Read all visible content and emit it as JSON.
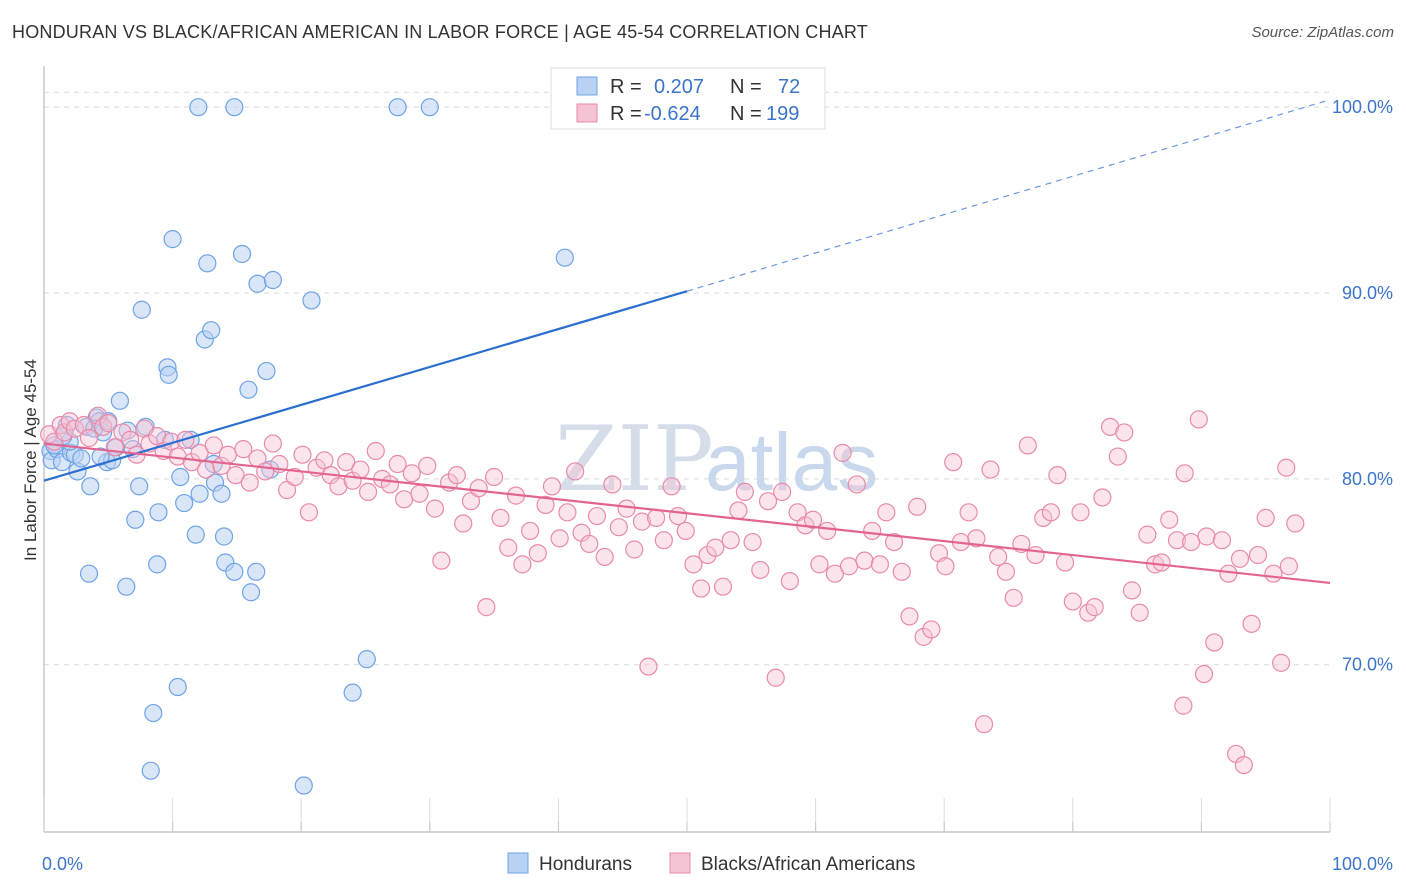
{
  "title": "HONDURAN VS BLACK/AFRICAN AMERICAN IN LABOR FORCE | AGE 45-54 CORRELATION CHART",
  "source": "Source: ZipAtlas.com",
  "watermark": {
    "zip": "ZIP",
    "atlas": "atlas"
  },
  "colors": {
    "blue": "#6ea3e6",
    "blue_fill": "#b9d2f3",
    "blue_line": "#2b6fcf",
    "pink": "#e98aa9",
    "pink_fill": "#f6c3d4",
    "pink_line": "#e2648f",
    "tick_text": "#3b74c9",
    "grid": "#d9d9d9"
  },
  "legend": {
    "rows": [
      {
        "r_label": "R =",
        "r_value": "0.207",
        "n_label": "N =",
        "n_value": "72"
      },
      {
        "r_label": "R =",
        "r_value": "-0.624",
        "n_label": "N =",
        "n_value": "199"
      }
    ]
  },
  "bottom_legend": {
    "series1": "Hondurans",
    "series2": "Blacks/African Americans"
  },
  "chart_data": {
    "type": "scatter",
    "title": "HONDURAN VS BLACK/AFRICAN AMERICAN IN LABOR FORCE | AGE 45-54 CORRELATION CHART",
    "xlabel": "",
    "ylabel": "In Labor Force | Age 45-54",
    "xlim": [
      0,
      100
    ],
    "ylim": [
      61,
      102
    ],
    "x_tick_labels": [
      "0.0%",
      "100.0%"
    ],
    "y_ticks": [
      70,
      80,
      90,
      100
    ],
    "y_tick_labels": [
      "70.0%",
      "80.0%",
      "90.0%",
      "100.0%"
    ],
    "grid": true,
    "series": [
      {
        "name": "Hondurans",
        "stats": {
          "R": 0.207,
          "N": 72
        },
        "trend": {
          "x1": 0,
          "y1": 79.9,
          "x2": 50,
          "y2": 90.1,
          "dash_to_x": 100,
          "dash_to_y": 100.4
        },
        "points": [
          [
            0.5,
            81.5
          ],
          [
            0.6,
            81.0
          ],
          [
            1.0,
            81.6
          ],
          [
            1.4,
            80.9
          ],
          [
            1.8,
            82.9
          ],
          [
            2.1,
            81.4
          ],
          [
            2.4,
            81.3
          ],
          [
            2.6,
            80.4
          ],
          [
            2.9,
            81.1
          ],
          [
            3.3,
            82.8
          ],
          [
            3.6,
            79.6
          ],
          [
            4.1,
            83.3
          ],
          [
            4.3,
            83.1
          ],
          [
            4.6,
            82.5
          ],
          [
            4.9,
            80.9
          ],
          [
            5.3,
            81.0
          ],
          [
            5.6,
            81.7
          ],
          [
            5.9,
            84.2
          ],
          [
            6.5,
            82.6
          ],
          [
            7.1,
            77.8
          ],
          [
            7.4,
            79.6
          ],
          [
            7.6,
            89.1
          ],
          [
            7.9,
            82.8
          ],
          [
            8.3,
            64.3
          ],
          [
            8.5,
            67.4
          ],
          [
            8.9,
            78.2
          ],
          [
            8.8,
            75.4
          ],
          [
            9.6,
            86.0
          ],
          [
            9.7,
            85.6
          ],
          [
            10.0,
            92.9
          ],
          [
            10.4,
            68.8
          ],
          [
            10.6,
            80.1
          ],
          [
            10.9,
            78.7
          ],
          [
            11.4,
            82.1
          ],
          [
            11.8,
            77.0
          ],
          [
            12.1,
            79.2
          ],
          [
            12.5,
            87.5
          ],
          [
            12.7,
            91.6
          ],
          [
            13.0,
            88.0
          ],
          [
            13.2,
            80.8
          ],
          [
            13.3,
            79.8
          ],
          [
            13.8,
            79.2
          ],
          [
            14.0,
            76.9
          ],
          [
            14.1,
            75.5
          ],
          [
            14.8,
            75.0
          ],
          [
            15.4,
            92.1
          ],
          [
            15.9,
            84.8
          ],
          [
            16.1,
            73.9
          ],
          [
            16.5,
            75.0
          ],
          [
            16.6,
            90.5
          ],
          [
            17.3,
            85.8
          ],
          [
            17.6,
            80.5
          ],
          [
            17.8,
            90.7
          ],
          [
            20.2,
            63.5
          ],
          [
            20.8,
            89.6
          ],
          [
            24.0,
            68.5
          ],
          [
            25.1,
            70.3
          ],
          [
            27.5,
            100.0
          ],
          [
            30.0,
            100.0
          ],
          [
            12.0,
            100.0
          ],
          [
            14.8,
            100.0
          ],
          [
            40.5,
            91.9
          ],
          [
            3.5,
            74.9
          ],
          [
            6.4,
            74.2
          ],
          [
            2.0,
            82.0
          ],
          [
            5.0,
            83.1
          ],
          [
            1.5,
            82.3
          ],
          [
            0.8,
            81.8
          ],
          [
            4.4,
            81.2
          ],
          [
            6.9,
            81.6
          ],
          [
            9.4,
            82.1
          ],
          [
            3.9,
            82.7
          ]
        ]
      },
      {
        "name": "Blacks/African Americans",
        "stats": {
          "R": -0.624,
          "N": 199
        },
        "trend": {
          "x1": 0,
          "y1": 81.9,
          "x2": 100,
          "y2": 74.4
        },
        "points": [
          [
            0.4,
            82.4
          ],
          [
            0.8,
            82.0
          ],
          [
            1.3,
            82.9
          ],
          [
            1.6,
            82.5
          ],
          [
            2.0,
            83.1
          ],
          [
            2.4,
            82.7
          ],
          [
            3.1,
            82.9
          ],
          [
            3.5,
            82.2
          ],
          [
            4.2,
            83.4
          ],
          [
            4.6,
            82.8
          ],
          [
            5.0,
            83.0
          ],
          [
            5.5,
            81.7
          ],
          [
            6.1,
            82.5
          ],
          [
            6.7,
            82.1
          ],
          [
            7.2,
            81.3
          ],
          [
            7.8,
            82.7
          ],
          [
            8.2,
            81.9
          ],
          [
            8.8,
            82.3
          ],
          [
            9.3,
            81.5
          ],
          [
            9.9,
            82.0
          ],
          [
            10.4,
            81.2
          ],
          [
            11.0,
            82.1
          ],
          [
            11.5,
            80.9
          ],
          [
            12.1,
            81.4
          ],
          [
            12.6,
            80.5
          ],
          [
            13.2,
            81.8
          ],
          [
            13.8,
            80.7
          ],
          [
            14.3,
            81.3
          ],
          [
            14.9,
            80.2
          ],
          [
            15.5,
            81.6
          ],
          [
            16.0,
            79.8
          ],
          [
            16.6,
            81.1
          ],
          [
            17.2,
            80.4
          ],
          [
            17.8,
            81.9
          ],
          [
            18.3,
            80.8
          ],
          [
            18.9,
            79.4
          ],
          [
            19.5,
            80.1
          ],
          [
            20.1,
            81.3
          ],
          [
            20.6,
            78.2
          ],
          [
            21.2,
            80.6
          ],
          [
            21.8,
            81.0
          ],
          [
            22.3,
            80.2
          ],
          [
            22.9,
            79.6
          ],
          [
            23.5,
            80.9
          ],
          [
            24.0,
            79.9
          ],
          [
            24.6,
            80.5
          ],
          [
            25.2,
            79.3
          ],
          [
            25.8,
            81.5
          ],
          [
            26.3,
            80.0
          ],
          [
            26.9,
            79.7
          ],
          [
            27.5,
            80.8
          ],
          [
            28.0,
            78.9
          ],
          [
            28.6,
            80.3
          ],
          [
            29.2,
            79.2
          ],
          [
            29.8,
            80.7
          ],
          [
            30.4,
            78.4
          ],
          [
            30.9,
            75.6
          ],
          [
            31.5,
            79.8
          ],
          [
            32.1,
            80.2
          ],
          [
            32.6,
            77.6
          ],
          [
            33.2,
            78.8
          ],
          [
            33.8,
            79.5
          ],
          [
            34.4,
            73.1
          ],
          [
            35.0,
            80.1
          ],
          [
            35.5,
            77.9
          ],
          [
            36.1,
            76.3
          ],
          [
            36.7,
            79.1
          ],
          [
            37.2,
            75.4
          ],
          [
            37.8,
            77.2
          ],
          [
            38.4,
            76.0
          ],
          [
            39.0,
            78.6
          ],
          [
            39.5,
            79.6
          ],
          [
            40.1,
            76.8
          ],
          [
            40.7,
            78.2
          ],
          [
            41.3,
            80.4
          ],
          [
            41.8,
            77.1
          ],
          [
            42.4,
            76.5
          ],
          [
            43.0,
            78.0
          ],
          [
            43.6,
            75.8
          ],
          [
            44.2,
            79.7
          ],
          [
            44.7,
            77.4
          ],
          [
            45.3,
            78.4
          ],
          [
            45.9,
            76.2
          ],
          [
            46.5,
            77.7
          ],
          [
            47.0,
            69.9
          ],
          [
            47.6,
            77.9
          ],
          [
            48.2,
            76.7
          ],
          [
            48.8,
            79.6
          ],
          [
            49.3,
            78.0
          ],
          [
            49.9,
            77.2
          ],
          [
            50.5,
            75.4
          ],
          [
            51.1,
            74.1
          ],
          [
            51.6,
            75.9
          ],
          [
            52.2,
            76.3
          ],
          [
            52.8,
            74.2
          ],
          [
            53.4,
            76.7
          ],
          [
            54.0,
            78.3
          ],
          [
            54.5,
            79.3
          ],
          [
            55.1,
            76.6
          ],
          [
            55.7,
            75.1
          ],
          [
            56.3,
            78.8
          ],
          [
            56.9,
            69.3
          ],
          [
            57.4,
            79.3
          ],
          [
            58.0,
            74.5
          ],
          [
            58.6,
            78.2
          ],
          [
            59.2,
            77.5
          ],
          [
            59.8,
            77.8
          ],
          [
            60.3,
            75.4
          ],
          [
            60.9,
            77.2
          ],
          [
            61.5,
            74.9
          ],
          [
            62.1,
            81.4
          ],
          [
            62.6,
            75.3
          ],
          [
            63.2,
            79.7
          ],
          [
            63.8,
            75.6
          ],
          [
            64.4,
            77.2
          ],
          [
            65.0,
            75.4
          ],
          [
            65.5,
            78.2
          ],
          [
            66.1,
            76.6
          ],
          [
            66.7,
            75.0
          ],
          [
            67.3,
            72.6
          ],
          [
            67.9,
            78.5
          ],
          [
            68.4,
            71.5
          ],
          [
            69.0,
            71.9
          ],
          [
            69.6,
            76.0
          ],
          [
            70.1,
            75.3
          ],
          [
            70.7,
            80.9
          ],
          [
            71.3,
            76.6
          ],
          [
            71.9,
            78.2
          ],
          [
            72.5,
            76.8
          ],
          [
            73.1,
            66.8
          ],
          [
            73.6,
            80.5
          ],
          [
            74.2,
            75.8
          ],
          [
            74.8,
            75.0
          ],
          [
            75.4,
            73.6
          ],
          [
            76.0,
            76.5
          ],
          [
            76.5,
            81.8
          ],
          [
            77.1,
            75.9
          ],
          [
            77.7,
            77.9
          ],
          [
            78.3,
            78.2
          ],
          [
            78.8,
            80.2
          ],
          [
            79.4,
            75.5
          ],
          [
            80.0,
            73.4
          ],
          [
            80.6,
            78.2
          ],
          [
            81.2,
            72.8
          ],
          [
            81.7,
            73.1
          ],
          [
            82.3,
            79.0
          ],
          [
            82.9,
            82.8
          ],
          [
            83.5,
            81.2
          ],
          [
            84.0,
            82.5
          ],
          [
            84.6,
            74.0
          ],
          [
            85.2,
            72.8
          ],
          [
            85.8,
            77.0
          ],
          [
            86.4,
            75.4
          ],
          [
            86.9,
            75.5
          ],
          [
            87.5,
            77.8
          ],
          [
            88.1,
            76.7
          ],
          [
            88.7,
            80.3
          ],
          [
            89.2,
            76.6
          ],
          [
            89.8,
            83.2
          ],
          [
            90.4,
            76.9
          ],
          [
            91.0,
            71.2
          ],
          [
            91.6,
            76.7
          ],
          [
            92.1,
            74.9
          ],
          [
            92.7,
            65.2
          ],
          [
            93.3,
            64.6
          ],
          [
            93.9,
            72.2
          ],
          [
            94.4,
            75.9
          ],
          [
            95.0,
            77.9
          ],
          [
            95.6,
            74.9
          ],
          [
            96.2,
            70.1
          ],
          [
            96.8,
            75.3
          ],
          [
            97.3,
            77.6
          ],
          [
            93.0,
            75.7
          ],
          [
            90.2,
            69.5
          ],
          [
            88.6,
            67.8
          ],
          [
            96.6,
            80.6
          ]
        ]
      }
    ]
  }
}
